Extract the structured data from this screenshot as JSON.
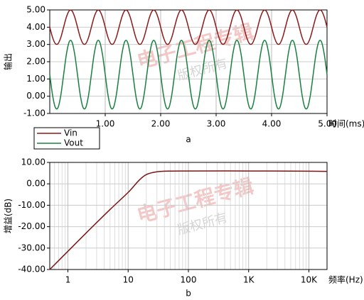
{
  "chart_data": [
    {
      "type": "line",
      "xlabel": "时间(ms)",
      "ylabel": "输出",
      "caption": "a",
      "annotations": [
        "电子工程专辑",
        "版权所有"
      ],
      "xlim": [
        0,
        5
      ],
      "ylim": [
        -1,
        5
      ],
      "grid": true,
      "legend": "bottom-left-outside",
      "xticks": [
        {
          "value": 1,
          "label": "1.00"
        },
        {
          "value": 2,
          "label": "2.00"
        },
        {
          "value": 3,
          "label": "3.00"
        },
        {
          "value": 4,
          "label": "4.00"
        },
        {
          "value": 5,
          "label": "5.00"
        }
      ],
      "yticks": [
        {
          "value": -1,
          "label": "-1.00"
        },
        {
          "value": 0,
          "label": "0.00"
        },
        {
          "value": 1,
          "label": "1.00"
        },
        {
          "value": 2,
          "label": "2.00"
        },
        {
          "value": 3,
          "label": "3.00"
        },
        {
          "value": 4,
          "label": "4.00"
        },
        {
          "value": 5,
          "label": "5.00"
        }
      ],
      "x": [
        0,
        0.05,
        0.1,
        0.15,
        0.2,
        0.25,
        0.3,
        0.35,
        0.4,
        0.45,
        0.5,
        0.55,
        0.6,
        0.65,
        0.7,
        0.75,
        0.8,
        0.85,
        0.9,
        0.95,
        1,
        1.05,
        1.1,
        1.15,
        1.2,
        1.25,
        1.3,
        1.35,
        1.4,
        1.45,
        1.5,
        1.55,
        1.6,
        1.65,
        1.7,
        1.75,
        1.8,
        1.85,
        1.9,
        1.95,
        2,
        2.05,
        2.1,
        2.15,
        2.2,
        2.25,
        2.3,
        2.35,
        2.4,
        2.45,
        2.5,
        2.55,
        2.6,
        2.65,
        2.7,
        2.75,
        2.8,
        2.85,
        2.9,
        2.95,
        3,
        3.05,
        3.1,
        3.15,
        3.2,
        3.25,
        3.3,
        3.35,
        3.4,
        3.45,
        3.5,
        3.55,
        3.6,
        3.65,
        3.7,
        3.75,
        3.8,
        3.85,
        3.9,
        3.95,
        4,
        4.05,
        4.1,
        4.15,
        4.2,
        4.25,
        4.3,
        4.35,
        4.4,
        4.45,
        4.5,
        4.55,
        4.6,
        4.65,
        4.7,
        4.75,
        4.8,
        4.85,
        4.9,
        4.95,
        5
      ],
      "series": [
        {
          "name": "Vin",
          "color": "#8b1a1a",
          "values": [
            4,
            3.41,
            3.05,
            3.05,
            3.41,
            4,
            4.59,
            4.95,
            4.95,
            4.59,
            4,
            3.41,
            3.05,
            3.05,
            3.41,
            4,
            4.59,
            4.95,
            4.95,
            4.59,
            4,
            3.41,
            3.05,
            3.05,
            3.41,
            4,
            4.59,
            4.95,
            4.95,
            4.59,
            4,
            3.41,
            3.05,
            3.05,
            3.41,
            4,
            4.59,
            4.95,
            4.95,
            4.59,
            4,
            3.41,
            3.05,
            3.05,
            3.41,
            4,
            4.59,
            4.95,
            4.95,
            4.59,
            4,
            3.41,
            3.05,
            3.05,
            3.41,
            4,
            4.59,
            4.95,
            4.95,
            4.59,
            4,
            3.41,
            3.05,
            3.05,
            3.41,
            4,
            4.59,
            4.95,
            4.95,
            4.59,
            4,
            3.41,
            3.05,
            3.05,
            3.41,
            4,
            4.59,
            4.95,
            4.95,
            4.59,
            4,
            3.41,
            3.05,
            3.05,
            3.41,
            4,
            4.59,
            4.95,
            4.95,
            4.59,
            4,
            3.41,
            3.05,
            3.05,
            3.41,
            4,
            4.59,
            4.95,
            4.95,
            4.59,
            4
          ]
        },
        {
          "name": "Vout",
          "color": "#1a8040",
          "values": [
            1.25,
            0.07,
            -0.65,
            -0.65,
            0.07,
            1.25,
            2.43,
            3.15,
            3.15,
            2.43,
            1.25,
            0.07,
            -0.65,
            -0.65,
            0.07,
            1.25,
            2.43,
            3.15,
            3.15,
            2.43,
            1.25,
            0.07,
            -0.65,
            -0.65,
            0.07,
            1.25,
            2.43,
            3.15,
            3.15,
            2.43,
            1.25,
            0.07,
            -0.65,
            -0.65,
            0.07,
            1.25,
            2.43,
            3.15,
            3.15,
            2.43,
            1.25,
            0.07,
            -0.65,
            -0.65,
            0.07,
            1.25,
            2.43,
            3.15,
            3.15,
            2.43,
            1.25,
            0.07,
            -0.65,
            -0.65,
            0.07,
            1.25,
            2.43,
            3.15,
            3.15,
            2.43,
            1.25,
            0.07,
            -0.65,
            -0.65,
            0.07,
            1.25,
            2.43,
            3.15,
            3.15,
            2.43,
            1.25,
            0.07,
            -0.65,
            -0.65,
            0.07,
            1.25,
            2.43,
            3.15,
            3.15,
            2.43,
            1.25,
            0.07,
            -0.65,
            -0.65,
            0.07,
            1.25,
            2.43,
            3.15,
            3.15,
            2.43,
            1.25,
            0.07,
            -0.65,
            -0.65,
            0.07,
            1.25,
            2.43,
            3.15,
            3.15,
            2.43,
            1.25
          ]
        }
      ]
    },
    {
      "type": "line",
      "xlabel": "频率(Hz)",
      "ylabel": "增益(dB)",
      "caption": "b",
      "annotations": [
        "电子工程专辑",
        "版权所有"
      ],
      "xscale": "log",
      "xlim": [
        0.5,
        20000
      ],
      "ylim": [
        -40,
        10
      ],
      "grid": true,
      "xticks": [
        1,
        10,
        100,
        {
          "value": 1000,
          "label": "1K"
        },
        {
          "value": 10000,
          "label": "10K"
        }
      ],
      "xminorticks": [
        0.6,
        0.7,
        0.8,
        0.9,
        2,
        3,
        4,
        5,
        6,
        7,
        8,
        9,
        20,
        30,
        40,
        50,
        60,
        70,
        80,
        90,
        200,
        300,
        400,
        500,
        600,
        700,
        800,
        900,
        2000,
        3000,
        4000,
        5000,
        6000,
        7000,
        8000,
        9000,
        20000
      ],
      "yticks": [
        {
          "value": -40,
          "label": "-40.00"
        },
        {
          "value": -30,
          "label": "-30.00"
        },
        {
          "value": -20,
          "label": "-20.00"
        },
        {
          "value": -10,
          "label": "-10.00"
        },
        {
          "value": 0,
          "label": "0.00"
        },
        {
          "value": 10,
          "label": "10.00"
        }
      ],
      "x": [
        0.5,
        1,
        2,
        5,
        10,
        15,
        20,
        30,
        50,
        100,
        1000,
        10000,
        20000
      ],
      "series": [
        {
          "name": "增益",
          "color": "#7a1515",
          "values": [
            -40,
            -31.5,
            -23,
            -12,
            -4,
            1.5,
            4.3,
            5.6,
            5.95,
            6,
            6,
            5.9,
            5.8
          ]
        }
      ]
    }
  ]
}
